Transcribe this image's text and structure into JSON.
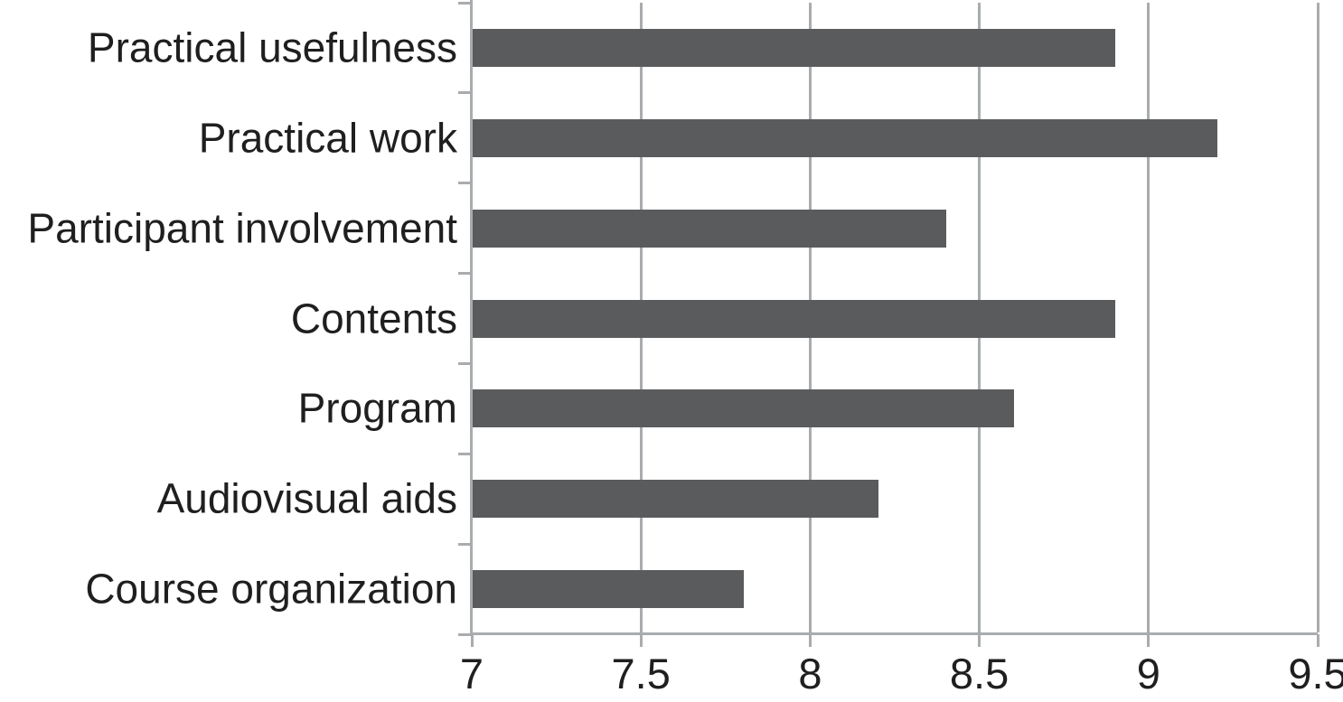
{
  "chart_data": {
    "type": "bar",
    "orientation": "horizontal",
    "title": "",
    "xlabel": "",
    "ylabel": "",
    "categories": [
      "Practical usefulness",
      "Practical work",
      "Participant involvement",
      "Contents",
      "Program",
      "Audiovisual aids",
      "Course organization"
    ],
    "values": [
      8.9,
      9.2,
      8.4,
      8.9,
      8.6,
      8.2,
      7.8
    ],
    "xlim": [
      7,
      9.5
    ],
    "x_tick_values": [
      7,
      7.5,
      8,
      8.5,
      9,
      9.5
    ],
    "x_tick_labels": [
      "7",
      "7.5",
      "8",
      "8.5",
      "9",
      "9.5"
    ],
    "grid": true,
    "legend": false,
    "colors": {
      "bar": "#595b5d",
      "axis": "#a9acaf",
      "text": "#1f1f1f",
      "background": "#ffffff"
    }
  }
}
